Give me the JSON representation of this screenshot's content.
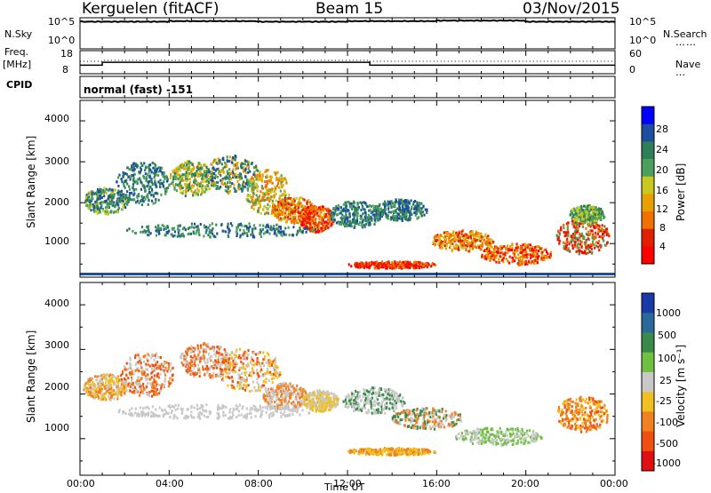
{
  "header": {
    "station": "Kerguelen (fitACF)",
    "beam": "Beam 15",
    "date": "03/Nov/2015"
  },
  "panels": {
    "nsky": {
      "label": "N.Sky",
      "ticks": [
        "10^5",
        "10^0"
      ],
      "right_label": "N.Search",
      "right_ticks": [
        "10^5",
        "10^0"
      ]
    },
    "freq": {
      "label_top": "Freq.",
      "label_bottom": "[MHz]",
      "ticks": [
        "18",
        "8"
      ],
      "right_label": "Nave",
      "right_ticks": [
        "60",
        "0"
      ]
    },
    "cpid": {
      "label": "CPID",
      "value": "normal (fast) -151"
    }
  },
  "colors": {
    "power_scale": [
      "#0000ff",
      "#1e4f9e",
      "#2f7f5a",
      "#4aa05a",
      "#c8c820",
      "#e8a000",
      "#f07000",
      "#e02000",
      "#ff0000"
    ],
    "velocity_scale": [
      "#1a3aa8",
      "#2a6a9a",
      "#3a8a4a",
      "#70c040",
      "#c8c8c8",
      "#f0c020",
      "#f08020",
      "#f05010",
      "#e01010"
    ]
  },
  "chart_data": [
    {
      "type": "line",
      "name": "nsky",
      "x": [
        "00:00",
        "04:00",
        "08:00",
        "12:00",
        "16:00",
        "20:00",
        "00:00"
      ],
      "values_log10": [
        4.6,
        4.7,
        4.6,
        4.7,
        4.8,
        4.6,
        4.5
      ],
      "ylim_log10": [
        0,
        5
      ]
    },
    {
      "type": "line",
      "name": "frequency",
      "x_hours": [
        0,
        1,
        1,
        13,
        13,
        24
      ],
      "values_mhz": [
        11,
        11,
        12.5,
        12.5,
        11,
        11
      ],
      "nave_hours": [
        0,
        1,
        1,
        13,
        13,
        24
      ],
      "nave": [
        30,
        30,
        33,
        33,
        30,
        30
      ],
      "ylim": [
        8,
        18
      ],
      "nave_lim": [
        0,
        60
      ]
    },
    {
      "type": "heatmap",
      "name": "power",
      "title": "",
      "xlabel": "",
      "ylabel": "Slant Range [km]",
      "colorbar_label": "Power [dB]",
      "colorbar_ticks": [
        "28",
        "24",
        "20",
        "16",
        "12",
        "8",
        "4"
      ],
      "yticks": [
        "4000",
        "3000",
        "2000",
        "1000"
      ],
      "ylim": [
        180,
        4500
      ],
      "xlim_hours": [
        0,
        24
      ]
    },
    {
      "type": "heatmap",
      "name": "velocity",
      "xlabel": "Time UT",
      "ylabel": "Slant Range [km]",
      "colorbar_label": "Velocity [m s⁻¹]",
      "colorbar_ticks": [
        "1000",
        "500",
        "100",
        "25",
        "-25",
        "-100",
        "-500",
        "-1000"
      ],
      "yticks": [
        "4000",
        "3000",
        "2000",
        "1000"
      ],
      "xticks": [
        "00:00",
        "04:00",
        "08:00",
        "12:00",
        "16:00",
        "20:00",
        "00:00"
      ],
      "ylim": [
        180,
        4500
      ],
      "xlim_hours": [
        0,
        24
      ]
    }
  ]
}
